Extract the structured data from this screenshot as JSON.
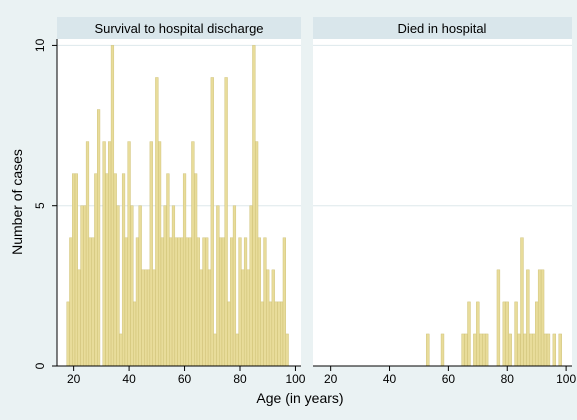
{
  "chart_data": {
    "type": "bar",
    "ylabel": "Number of cases",
    "xlabel": "Age (in years)",
    "xlim": [
      14,
      102
    ],
    "ylim": [
      0,
      10.2
    ],
    "xticks": [
      20,
      40,
      60,
      80,
      100
    ],
    "yticks": [
      0,
      5,
      10
    ],
    "colors": {
      "bar": "#e8dc9a",
      "bar_stroke": "#c9bb6e",
      "plot_bg": "#ffffff",
      "strip_bg": "#d9e6eb",
      "outer_bg": "#eaf2f3",
      "grid": "#dde8ec"
    },
    "panels": [
      {
        "title": "Survival to hospital discharge",
        "series": [
          {
            "x": [
              18,
              19,
              20,
              21,
              22,
              23,
              24,
              25,
              26,
              27,
              28,
              29,
              30,
              31,
              32,
              33,
              34,
              35,
              36,
              37,
              38,
              39,
              40,
              41,
              42,
              43,
              44,
              45,
              46,
              47,
              48,
              49,
              50,
              51,
              52,
              53,
              54,
              55,
              56,
              57,
              58,
              59,
              60,
              61,
              62,
              63,
              64,
              65,
              66,
              67,
              68,
              69,
              70,
              71,
              72,
              73,
              74,
              75,
              76,
              77,
              78,
              79,
              80,
              81,
              82,
              83,
              84,
              85,
              86,
              87,
              88,
              89,
              90,
              91,
              92,
              93,
              94,
              95,
              96,
              97,
              98
            ],
            "values": [
              2,
              4,
              6,
              6,
              3,
              5,
              5,
              7,
              4,
              4,
              6,
              8,
              0,
              7,
              6,
              7,
              10,
              6,
              5,
              1,
              6,
              4,
              7,
              5,
              2,
              4,
              5,
              3,
              3,
              3,
              7,
              3,
              9,
              7,
              4,
              5,
              6,
              4,
              5,
              4,
              4,
              4,
              6,
              4,
              4,
              7,
              6,
              4,
              3,
              4,
              4,
              3,
              9,
              1,
              5,
              4,
              4,
              9,
              2,
              4,
              5,
              1,
              4,
              3,
              4,
              3,
              5,
              10,
              7,
              4,
              2,
              4,
              3,
              2,
              3,
              2,
              2,
              2,
              4,
              1,
              0
            ]
          }
        ]
      },
      {
        "title": "Died in hospital",
        "series": [
          {
            "x": [
              53,
              58,
              65,
              66,
              67,
              69,
              70,
              71,
              72,
              73,
              77,
              79,
              80,
              81,
              83,
              84,
              85,
              86,
              87,
              88,
              89,
              90,
              91,
              92,
              93,
              94,
              96,
              98
            ],
            "values": [
              1,
              1,
              1,
              1,
              2,
              1,
              2,
              1,
              1,
              1,
              3,
              2,
              2,
              1,
              2,
              1,
              4,
              1,
              3,
              1,
              1,
              2,
              3,
              3,
              1,
              1,
              1,
              1
            ]
          }
        ]
      }
    ]
  }
}
